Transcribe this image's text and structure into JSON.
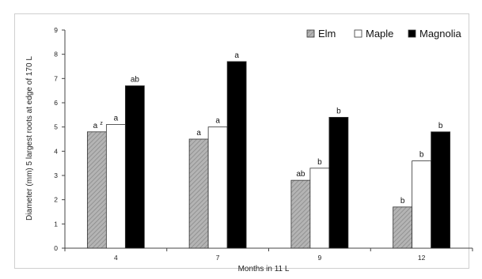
{
  "chart_data": {
    "type": "bar",
    "title": "",
    "xlabel": "Months in 11 L",
    "ylabel": "Diameter (mm) 5 largest roots at edge of 170 L",
    "categories": [
      "4",
      "7",
      "9",
      "12"
    ],
    "ylim": [
      0,
      9
    ],
    "yticks": [
      "0",
      "1",
      "2",
      "3",
      "4",
      "5",
      "6",
      "7",
      "8",
      "9"
    ],
    "grid": false,
    "legend_position": "top-right",
    "series": [
      {
        "name": "Elm",
        "color": "#a8a8a8",
        "pattern": "diagonal-hatch",
        "values": [
          4.8,
          4.5,
          2.8,
          1.7
        ],
        "labels": [
          "a",
          "a",
          "ab",
          "b"
        ]
      },
      {
        "name": "Maple",
        "color": "#ffffff",
        "values": [
          5.1,
          5.0,
          3.3,
          3.6
        ],
        "labels": [
          "a",
          "a",
          "b",
          "b"
        ]
      },
      {
        "name": "Magnolia",
        "color": "#000000",
        "values": [
          6.7,
          7.7,
          5.4,
          4.8
        ],
        "labels": [
          "ab",
          "a",
          "b",
          "b"
        ]
      }
    ],
    "superscript_annotation": {
      "series": 0,
      "category": 0,
      "text": "z"
    }
  }
}
